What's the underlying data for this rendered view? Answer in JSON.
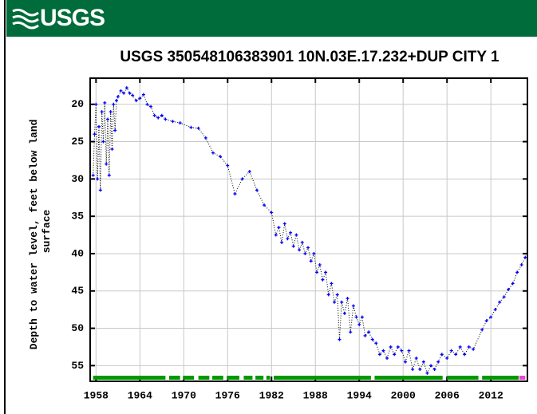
{
  "header": {
    "logo": "USGS"
  },
  "chart_data": {
    "type": "line",
    "title": "USGS 350548106383901 10N.03E.17.232+DUP CITY 1",
    "ylabel": [
      "Depth to water level, feet below land",
      "surface"
    ],
    "xlim": [
      1957.2,
      2017.0
    ],
    "ylim": [
      57.1,
      16.5
    ],
    "y_inverted": true,
    "xticks": [
      1958,
      1964,
      1970,
      1976,
      1982,
      1988,
      1994,
      2000,
      2006,
      2012
    ],
    "yticks": [
      20,
      25,
      30,
      35,
      40,
      45,
      50,
      55
    ],
    "grid": true,
    "series": [
      {
        "color": "#0000ff",
        "x": [
          1957.6,
          1957.8,
          1958.0,
          1958.2,
          1958.4,
          1958.6,
          1958.8,
          1959.0,
          1959.2,
          1959.4,
          1959.6,
          1959.8,
          1960.0,
          1960.2,
          1960.4,
          1960.6,
          1960.8,
          1961.0,
          1961.4,
          1961.8,
          1962.2,
          1962.6,
          1963.0,
          1963.5,
          1964.0,
          1964.5,
          1965.0,
          1965.5,
          1966.0,
          1966.5,
          1967.0,
          1967.5,
          1968.5,
          1969.5,
          1971.0,
          1972.0,
          1973.0,
          1974.0,
          1975.0,
          1976.0,
          1977.0,
          1978.0,
          1979.0,
          1980.0,
          1981.0,
          1982.0,
          1982.6,
          1983.0,
          1983.4,
          1983.8,
          1984.2,
          1984.6,
          1985.0,
          1985.4,
          1985.8,
          1986.2,
          1986.6,
          1987.0,
          1987.4,
          1987.8,
          1988.2,
          1988.6,
          1989.0,
          1989.4,
          1989.8,
          1990.2,
          1990.6,
          1991.0,
          1991.3,
          1991.6,
          1992.0,
          1992.4,
          1992.8,
          1993.2,
          1993.6,
          1994.0,
          1994.4,
          1994.8,
          1995.3,
          1995.8,
          1996.3,
          1996.8,
          1997.3,
          1997.8,
          1998.3,
          1998.8,
          1999.3,
          1999.8,
          2000.3,
          2000.8,
          2001.3,
          2001.8,
          2002.3,
          2002.8,
          2003.3,
          2003.8,
          2004.3,
          2004.8,
          2005.3,
          2006.0,
          2006.6,
          2007.2,
          2007.8,
          2008.4,
          2009.0,
          2009.6,
          2010.8,
          2011.4,
          2012.0,
          2012.6,
          2013.2,
          2013.8,
          2014.4,
          2015.0,
          2015.6,
          2016.2,
          2016.7
        ],
        "values": [
          29.5,
          24,
          20,
          30,
          23,
          31.5,
          21,
          25,
          19.8,
          28,
          22,
          29.5,
          21,
          26,
          20,
          23.5,
          19.5,
          19,
          18.2,
          18.5,
          17.8,
          18.5,
          18.8,
          19.5,
          19.2,
          18.7,
          20,
          20.3,
          21.5,
          21.8,
          21.5,
          22,
          22.3,
          22.5,
          23.1,
          23.2,
          24.5,
          26.5,
          27,
          28.2,
          32,
          30,
          29,
          31.5,
          33.5,
          34.5,
          37.5,
          36.5,
          38.5,
          36,
          38,
          37.2,
          39,
          37.5,
          39.5,
          38.5,
          40,
          39.2,
          41,
          40,
          42.5,
          41.5,
          43.5,
          42.5,
          45.5,
          44,
          46.5,
          45.5,
          51.5,
          46.5,
          48,
          46,
          50.5,
          47,
          48.5,
          49.5,
          48.5,
          51,
          50.5,
          51.5,
          52,
          53.5,
          53,
          54,
          52.5,
          53.5,
          52.5,
          53,
          54.5,
          53,
          55.5,
          54,
          55.5,
          54.5,
          56,
          55,
          55.5,
          54.5,
          53.5,
          54,
          53,
          53.5,
          52.5,
          53.5,
          52.5,
          52.8,
          50.2,
          49,
          48.5,
          47.5,
          46.5,
          45.8,
          44.8,
          44,
          42.5,
          41.5,
          40.5
        ]
      }
    ],
    "periods": [
      {
        "from": 1957.6,
        "to": 1967.5,
        "color": "#009900"
      },
      {
        "from": 1968.0,
        "to": 1969.5,
        "color": "#009900"
      },
      {
        "from": 1969.9,
        "to": 1971.4,
        "color": "#009900"
      },
      {
        "from": 1972.0,
        "to": 1973.5,
        "color": "#009900"
      },
      {
        "from": 1973.9,
        "to": 1975.4,
        "color": "#009900"
      },
      {
        "from": 1975.9,
        "to": 1977.6,
        "color": "#009900"
      },
      {
        "from": 1978.2,
        "to": 1979.4,
        "color": "#009900"
      },
      {
        "from": 1979.8,
        "to": 1980.9,
        "color": "#009900"
      },
      {
        "from": 1981.3,
        "to": 1981.8,
        "color": "#009900"
      },
      {
        "from": 1982.3,
        "to": 1995.6,
        "color": "#009900"
      },
      {
        "from": 1996.1,
        "to": 2005.4,
        "color": "#009900"
      },
      {
        "from": 2006.0,
        "to": 2010.3,
        "color": "#009900"
      },
      {
        "from": 2010.8,
        "to": 2015.8,
        "color": "#009900"
      },
      {
        "from": 2015.9,
        "to": 2016.7,
        "color": "#ee44cc"
      }
    ]
  }
}
